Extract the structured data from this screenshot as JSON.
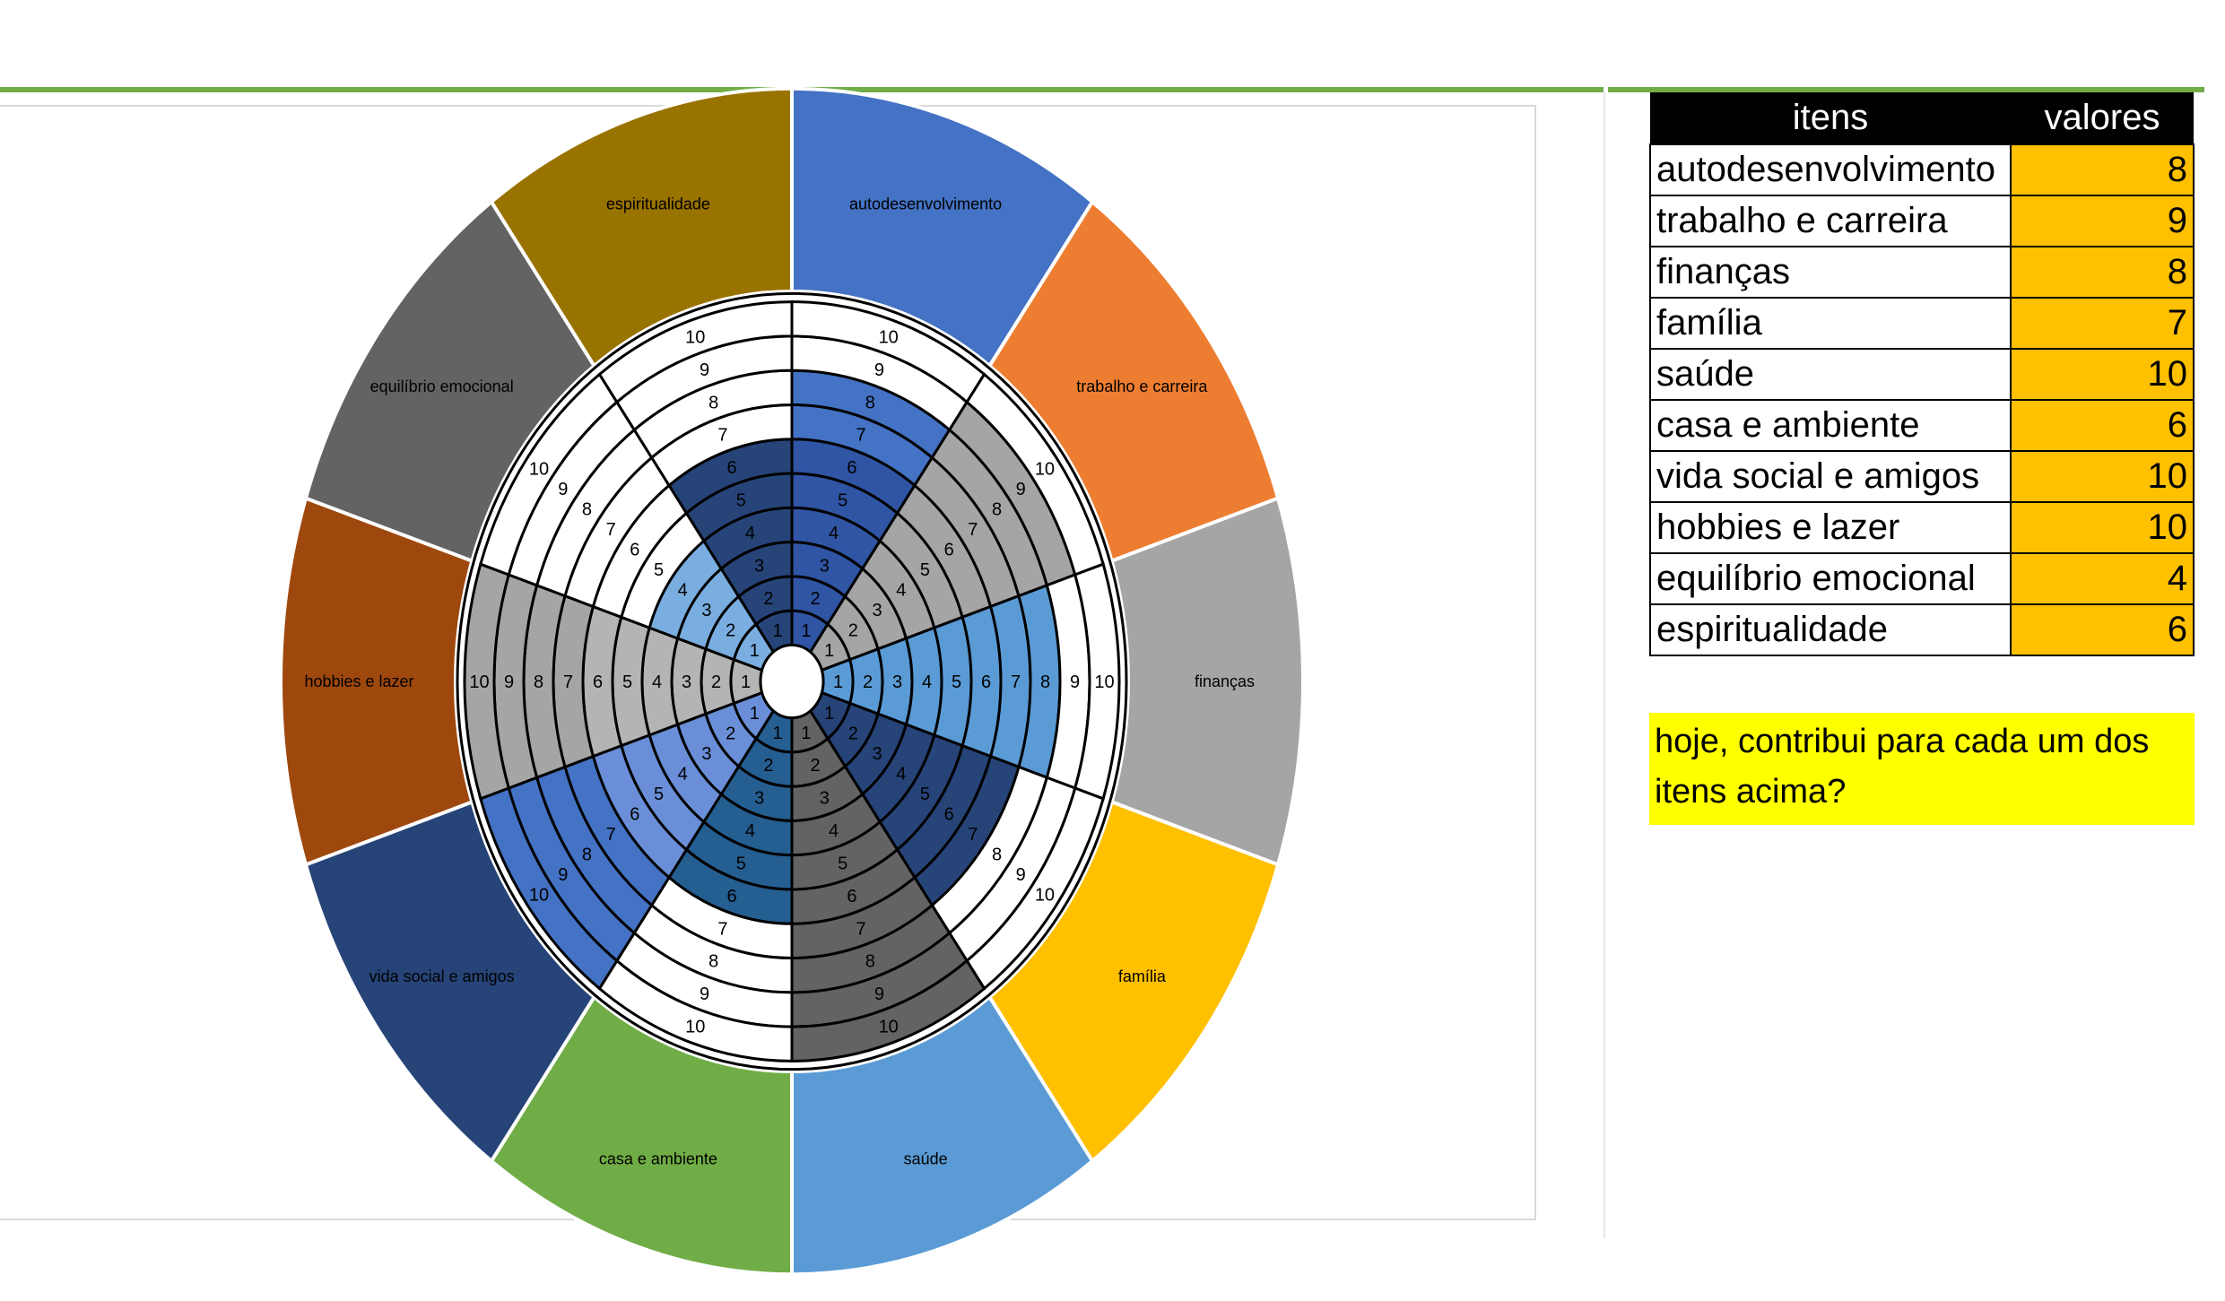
{
  "chart_data": {
    "type": "wheel-of-life",
    "scale_max": 10,
    "categories": [
      "autodesenvolvimento",
      "trabalho e carreira",
      "finanças",
      "família",
      "saúde",
      "casa e ambiente",
      "vida social e amigos",
      "hobbies e lazer",
      "equilíbrio emocional",
      "espiritualidade"
    ],
    "values": [
      8,
      9,
      8,
      7,
      10,
      6,
      10,
      10,
      4,
      6
    ],
    "outer_colors": [
      "#4472c4",
      "#ed7d31",
      "#a5a5a5",
      "#ffc000",
      "#5b9bd5",
      "#70ad47",
      "#264478",
      "#9e480e",
      "#636363",
      "#997300"
    ],
    "inner_colors": [
      "#4472c4",
      "#a5a5a5",
      "#5b9bd5",
      "#264478",
      "#636363",
      "#255e91",
      "#4472c4",
      "#a5a5a5",
      "#5b9bd5",
      "#264478"
    ],
    "inner_highlight_colors": [
      "#2f55a4",
      "#a5a5a5",
      "#5b9bd5",
      "#264478",
      "#636363",
      "#255e91",
      "#6a8fd8",
      "#b4b4b4",
      "#7aaee0",
      "#264478"
    ],
    "ring_labels": [
      "1",
      "2",
      "3",
      "4",
      "5",
      "6",
      "7",
      "8",
      "9",
      "10"
    ]
  },
  "table": {
    "headers": [
      "itens",
      "valores"
    ],
    "rows": [
      {
        "item": "autodesenvolvimento",
        "value": "8"
      },
      {
        "item": "trabalho e carreira",
        "value": "9"
      },
      {
        "item": "finanças",
        "value": "8"
      },
      {
        "item": "família",
        "value": "7"
      },
      {
        "item": "saúde",
        "value": "10"
      },
      {
        "item": "casa e ambiente",
        "value": "6"
      },
      {
        "item": "vida social e amigos",
        "value": "10"
      },
      {
        "item": "hobbies e lazer",
        "value": "10"
      },
      {
        "item": "equilíbrio emocional",
        "value": "4"
      },
      {
        "item": "espiritualidade",
        "value": "6"
      }
    ]
  },
  "note": "hoje, contribui para cada um dos itens acima?"
}
